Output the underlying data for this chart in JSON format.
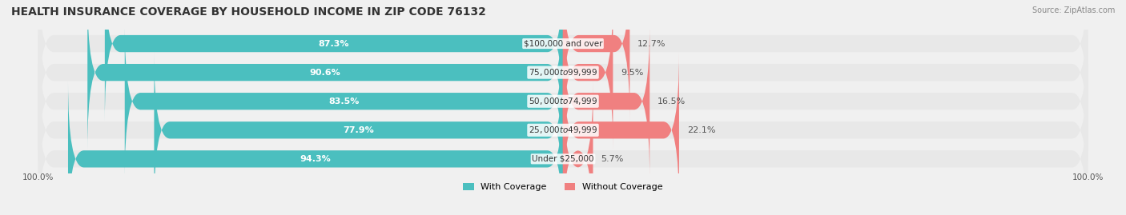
{
  "title": "HEALTH INSURANCE COVERAGE BY HOUSEHOLD INCOME IN ZIP CODE 76132",
  "source": "Source: ZipAtlas.com",
  "categories": [
    "Under $25,000",
    "$25,000 to $49,999",
    "$50,000 to $74,999",
    "$75,000 to $99,999",
    "$100,000 and over"
  ],
  "with_coverage": [
    94.3,
    77.9,
    83.5,
    90.6,
    87.3
  ],
  "without_coverage": [
    5.7,
    22.1,
    16.5,
    9.5,
    12.7
  ],
  "color_with": "#4BBFBF",
  "color_without": "#F08080",
  "bg_color": "#f0f0f0",
  "bar_bg_color": "#e8e8e8",
  "title_fontsize": 10,
  "label_fontsize": 8,
  "bar_height": 0.55,
  "x_left_label": "100.0%",
  "x_right_label": "100.0%",
  "legend_with": "With Coverage",
  "legend_without": "Without Coverage"
}
